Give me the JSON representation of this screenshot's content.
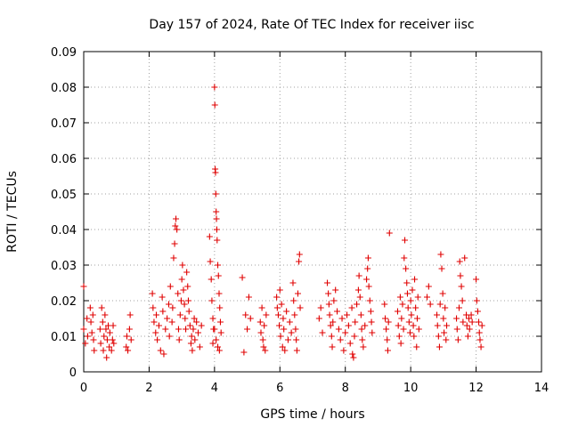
{
  "chart_data": {
    "type": "scatter",
    "title": "Day 157 of 2024, Rate Of TEC Index for receiver iisc",
    "xlabel": "GPS time / hours",
    "ylabel": "ROTI / TECUs",
    "xlim": [
      0,
      14
    ],
    "ylim": [
      0,
      0.09
    ],
    "xticks": [
      0,
      2,
      4,
      6,
      8,
      10,
      12,
      14
    ],
    "yticks": [
      0,
      0.01,
      0.02,
      0.03,
      0.04,
      0.05,
      0.06,
      0.07,
      0.08,
      0.09
    ],
    "xtick_labels": [
      "0",
      "2",
      "4",
      "6",
      "8",
      "10",
      "12",
      "14"
    ],
    "ytick_labels": [
      "0",
      "0.01",
      "0.02",
      "0.03",
      "0.04",
      "0.05",
      "0.06",
      "0.07",
      "0.08",
      "0.09"
    ],
    "grid": true,
    "marker": "+",
    "color": "#e00000",
    "series": [
      {
        "name": "ROTI",
        "points": [
          [
            0.0,
            0.024
          ],
          [
            0.0,
            0.012
          ],
          [
            0.05,
            0.008
          ],
          [
            0.1,
            0.015
          ],
          [
            0.12,
            0.01
          ],
          [
            0.2,
            0.018
          ],
          [
            0.22,
            0.014
          ],
          [
            0.25,
            0.011
          ],
          [
            0.28,
            0.016
          ],
          [
            0.3,
            0.009
          ],
          [
            0.32,
            0.006
          ],
          [
            0.5,
            0.012
          ],
          [
            0.52,
            0.008
          ],
          [
            0.55,
            0.018
          ],
          [
            0.58,
            0.014
          ],
          [
            0.6,
            0.006
          ],
          [
            0.62,
            0.01
          ],
          [
            0.65,
            0.016
          ],
          [
            0.68,
            0.012
          ],
          [
            0.7,
            0.004
          ],
          [
            0.72,
            0.009
          ],
          [
            0.75,
            0.013
          ],
          [
            0.78,
            0.007
          ],
          [
            0.8,
            0.011
          ],
          [
            0.85,
            0.006
          ],
          [
            0.88,
            0.009
          ],
          [
            0.9,
            0.013
          ],
          [
            0.92,
            0.008
          ],
          [
            1.3,
            0.007
          ],
          [
            1.32,
            0.01
          ],
          [
            1.35,
            0.006
          ],
          [
            1.4,
            0.012
          ],
          [
            1.42,
            0.016
          ],
          [
            1.45,
            0.009
          ],
          [
            2.1,
            0.022
          ],
          [
            2.12,
            0.018
          ],
          [
            2.15,
            0.014
          ],
          [
            2.2,
            0.011
          ],
          [
            2.22,
            0.016
          ],
          [
            2.25,
            0.009
          ],
          [
            2.3,
            0.013
          ],
          [
            2.35,
            0.006
          ],
          [
            2.4,
            0.021
          ],
          [
            2.42,
            0.017
          ],
          [
            2.45,
            0.005
          ],
          [
            2.5,
            0.012
          ],
          [
            2.55,
            0.015
          ],
          [
            2.6,
            0.019
          ],
          [
            2.62,
            0.01
          ],
          [
            2.65,
            0.024
          ],
          [
            2.7,
            0.014
          ],
          [
            2.72,
            0.018
          ],
          [
            2.75,
            0.032
          ],
          [
            2.78,
            0.036
          ],
          [
            2.8,
            0.041
          ],
          [
            2.82,
            0.043
          ],
          [
            2.85,
            0.04
          ],
          [
            2.88,
            0.022
          ],
          [
            2.9,
            0.012
          ],
          [
            2.92,
            0.009
          ],
          [
            2.95,
            0.016
          ],
          [
            2.98,
            0.02
          ],
          [
            3.0,
            0.026
          ],
          [
            3.02,
            0.03
          ],
          [
            3.05,
            0.023
          ],
          [
            3.08,
            0.019
          ],
          [
            3.1,
            0.015
          ],
          [
            3.12,
            0.012
          ],
          [
            3.15,
            0.028
          ],
          [
            3.18,
            0.024
          ],
          [
            3.2,
            0.02
          ],
          [
            3.22,
            0.017
          ],
          [
            3.25,
            0.013
          ],
          [
            3.28,
            0.008
          ],
          [
            3.3,
            0.01
          ],
          [
            3.32,
            0.006
          ],
          [
            3.35,
            0.012
          ],
          [
            3.38,
            0.015
          ],
          [
            3.4,
            0.009
          ],
          [
            3.45,
            0.014
          ],
          [
            3.5,
            0.011
          ],
          [
            3.55,
            0.007
          ],
          [
            3.6,
            0.013
          ],
          [
            3.85,
            0.038
          ],
          [
            3.87,
            0.031
          ],
          [
            3.9,
            0.026
          ],
          [
            3.92,
            0.02
          ],
          [
            3.95,
            0.015
          ],
          [
            3.97,
            0.012
          ],
          [
            4.0,
            0.08
          ],
          [
            4.01,
            0.075
          ],
          [
            4.02,
            0.057
          ],
          [
            4.03,
            0.056
          ],
          [
            4.04,
            0.05
          ],
          [
            4.05,
            0.045
          ],
          [
            4.06,
            0.043
          ],
          [
            4.07,
            0.04
          ],
          [
            4.08,
            0.037
          ],
          [
            4.1,
            0.03
          ],
          [
            4.12,
            0.027
          ],
          [
            4.14,
            0.022
          ],
          [
            4.16,
            0.018
          ],
          [
            4.18,
            0.014
          ],
          [
            4.2,
            0.011
          ],
          [
            4.05,
            0.009
          ],
          [
            4.1,
            0.007
          ],
          [
            4.15,
            0.006
          ],
          [
            4.0,
            0.012
          ],
          [
            3.95,
            0.008
          ],
          [
            4.85,
            0.0265
          ],
          [
            4.9,
            0.0055
          ],
          [
            4.95,
            0.016
          ],
          [
            5.0,
            0.012
          ],
          [
            5.05,
            0.021
          ],
          [
            5.1,
            0.015
          ],
          [
            5.4,
            0.014
          ],
          [
            5.42,
            0.011
          ],
          [
            5.45,
            0.018
          ],
          [
            5.48,
            0.009
          ],
          [
            5.5,
            0.007
          ],
          [
            5.52,
            0.013
          ],
          [
            5.55,
            0.006
          ],
          [
            5.58,
            0.016
          ],
          [
            5.9,
            0.021
          ],
          [
            5.92,
            0.018
          ],
          [
            5.95,
            0.016
          ],
          [
            5.98,
            0.013
          ],
          [
            6.0,
            0.023
          ],
          [
            6.02,
            0.01
          ],
          [
            6.05,
            0.019
          ],
          [
            6.08,
            0.007
          ],
          [
            6.1,
            0.015
          ],
          [
            6.12,
            0.012
          ],
          [
            6.15,
            0.006
          ],
          [
            6.2,
            0.017
          ],
          [
            6.25,
            0.009
          ],
          [
            6.3,
            0.014
          ],
          [
            6.35,
            0.011
          ],
          [
            6.4,
            0.025
          ],
          [
            6.42,
            0.02
          ],
          [
            6.45,
            0.016
          ],
          [
            6.48,
            0.012
          ],
          [
            6.5,
            0.009
          ],
          [
            6.52,
            0.006
          ],
          [
            6.55,
            0.022
          ],
          [
            6.58,
            0.031
          ],
          [
            6.6,
            0.033
          ],
          [
            6.62,
            0.018
          ],
          [
            7.2,
            0.015
          ],
          [
            7.25,
            0.018
          ],
          [
            7.3,
            0.011
          ],
          [
            7.45,
            0.025
          ],
          [
            7.48,
            0.022
          ],
          [
            7.5,
            0.019
          ],
          [
            7.52,
            0.016
          ],
          [
            7.55,
            0.013
          ],
          [
            7.58,
            0.01
          ],
          [
            7.6,
            0.007
          ],
          [
            7.62,
            0.014
          ],
          [
            7.65,
            0.02
          ],
          [
            7.7,
            0.023
          ],
          [
            7.75,
            0.017
          ],
          [
            7.8,
            0.012
          ],
          [
            7.85,
            0.009
          ],
          [
            7.9,
            0.015
          ],
          [
            7.95,
            0.006
          ],
          [
            8.0,
            0.011
          ],
          [
            8.05,
            0.016
          ],
          [
            8.1,
            0.013
          ],
          [
            8.15,
            0.008
          ],
          [
            8.2,
            0.018
          ],
          [
            8.22,
            0.005
          ],
          [
            8.25,
            0.004
          ],
          [
            8.28,
            0.01
          ],
          [
            8.3,
            0.014
          ],
          [
            8.35,
            0.019
          ],
          [
            8.4,
            0.023
          ],
          [
            8.42,
            0.027
          ],
          [
            8.45,
            0.021
          ],
          [
            8.48,
            0.016
          ],
          [
            8.5,
            0.012
          ],
          [
            8.52,
            0.009
          ],
          [
            8.55,
            0.007
          ],
          [
            8.6,
            0.013
          ],
          [
            8.65,
            0.026
          ],
          [
            8.68,
            0.029
          ],
          [
            8.7,
            0.032
          ],
          [
            8.72,
            0.024
          ],
          [
            8.75,
            0.02
          ],
          [
            8.78,
            0.017
          ],
          [
            8.8,
            0.014
          ],
          [
            8.82,
            0.011
          ],
          [
            9.2,
            0.019
          ],
          [
            9.22,
            0.015
          ],
          [
            9.25,
            0.012
          ],
          [
            9.28,
            0.009
          ],
          [
            9.3,
            0.006
          ],
          [
            9.32,
            0.014
          ],
          [
            9.35,
            0.039
          ],
          [
            9.6,
            0.017
          ],
          [
            9.62,
            0.013
          ],
          [
            9.65,
            0.01
          ],
          [
            9.68,
            0.021
          ],
          [
            9.7,
            0.008
          ],
          [
            9.72,
            0.015
          ],
          [
            9.75,
            0.019
          ],
          [
            9.78,
            0.012
          ],
          [
            9.8,
            0.032
          ],
          [
            9.82,
            0.037
          ],
          [
            9.85,
            0.029
          ],
          [
            9.88,
            0.025
          ],
          [
            9.9,
            0.022
          ],
          [
            9.92,
            0.018
          ],
          [
            9.95,
            0.014
          ],
          [
            9.98,
            0.011
          ],
          [
            10.0,
            0.02
          ],
          [
            10.02,
            0.016
          ],
          [
            10.05,
            0.023
          ],
          [
            10.08,
            0.013
          ],
          [
            10.1,
            0.01
          ],
          [
            10.12,
            0.026
          ],
          [
            10.15,
            0.018
          ],
          [
            10.18,
            0.007
          ],
          [
            10.2,
            0.015
          ],
          [
            10.22,
            0.021
          ],
          [
            10.25,
            0.012
          ],
          [
            10.5,
            0.021
          ],
          [
            10.55,
            0.024
          ],
          [
            10.6,
            0.019
          ],
          [
            10.8,
            0.016
          ],
          [
            10.82,
            0.013
          ],
          [
            10.85,
            0.01
          ],
          [
            10.88,
            0.007
          ],
          [
            10.9,
            0.019
          ],
          [
            10.92,
            0.033
          ],
          [
            10.95,
            0.029
          ],
          [
            10.98,
            0.022
          ],
          [
            11.0,
            0.015
          ],
          [
            11.02,
            0.011
          ],
          [
            11.05,
            0.018
          ],
          [
            11.08,
            0.009
          ],
          [
            11.1,
            0.013
          ],
          [
            11.4,
            0.015
          ],
          [
            11.42,
            0.012
          ],
          [
            11.45,
            0.009
          ],
          [
            11.48,
            0.018
          ],
          [
            11.5,
            0.031
          ],
          [
            11.52,
            0.027
          ],
          [
            11.55,
            0.024
          ],
          [
            11.58,
            0.02
          ],
          [
            11.6,
            0.014
          ],
          [
            11.65,
            0.032
          ],
          [
            11.7,
            0.016
          ],
          [
            11.72,
            0.013
          ],
          [
            11.75,
            0.01
          ],
          [
            11.78,
            0.015
          ],
          [
            11.8,
            0.012
          ],
          [
            11.85,
            0.016
          ],
          [
            11.88,
            0.014
          ],
          [
            12.0,
            0.026
          ],
          [
            12.02,
            0.02
          ],
          [
            12.05,
            0.017
          ],
          [
            12.08,
            0.014
          ],
          [
            12.1,
            0.011
          ],
          [
            12.12,
            0.009
          ],
          [
            12.15,
            0.007
          ],
          [
            12.18,
            0.013
          ]
        ]
      }
    ]
  }
}
